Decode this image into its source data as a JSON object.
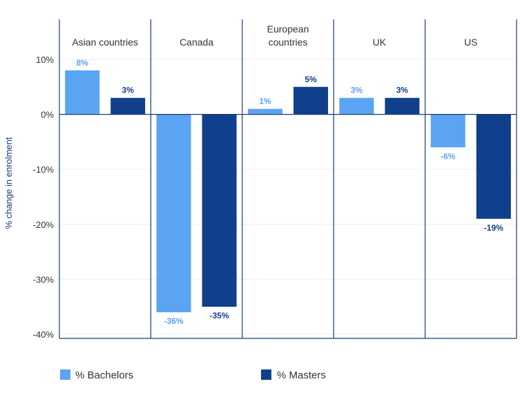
{
  "chart_data": {
    "type": "bar",
    "categories": [
      "Asian countries",
      "Canada",
      "European countries",
      "UK",
      "US"
    ],
    "category_lines": [
      [
        "Asian countries"
      ],
      [
        "Canada"
      ],
      [
        "European",
        "countries"
      ],
      [
        "UK"
      ],
      [
        "US"
      ]
    ],
    "series": [
      {
        "name": "% Bachelors",
        "values": [
          8,
          -36,
          1,
          3,
          -6
        ],
        "labels": [
          "8%",
          "-36%",
          "1%",
          "3%",
          "-6%"
        ],
        "color": "#5ba4f3"
      },
      {
        "name": "% Masters",
        "values": [
          3,
          -35,
          5,
          3,
          -19
        ],
        "labels": [
          "3%",
          "-35%",
          "5%",
          "3%",
          "-19%"
        ],
        "color": "#103f8c"
      }
    ],
    "ylabel": "% change in enrolment",
    "ylim": [
      -40,
      10
    ],
    "yticks": [
      10,
      0,
      -10,
      -20,
      -30,
      -40
    ],
    "ytick_labels": [
      "10%",
      "0%",
      "-10%",
      "-20%",
      "-30%",
      "-40%"
    ],
    "grid": true,
    "legend_position": "bottom",
    "panel_border_color": "#1a3a7a"
  }
}
